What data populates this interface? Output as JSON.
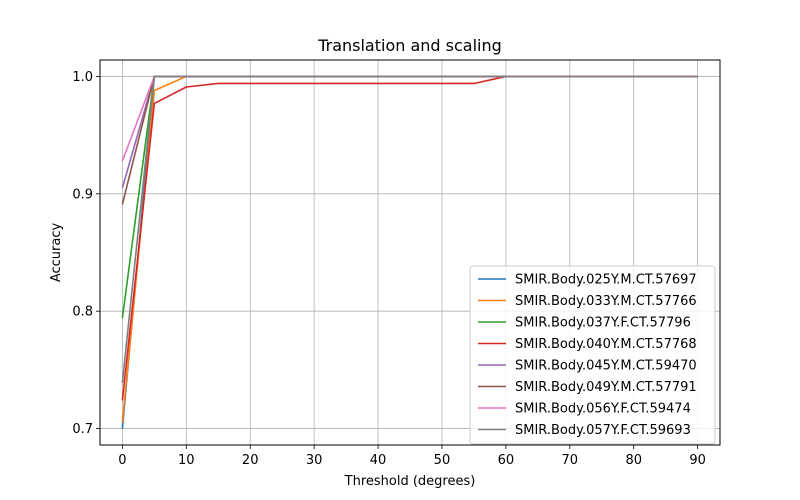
{
  "chart_data": {
    "type": "line",
    "title": "Translation and scaling",
    "xlabel": "Threshold (degrees)",
    "ylabel": "Accuracy",
    "xlim": [
      -3.5,
      93.5
    ],
    "ylim": [
      0.686,
      1.014
    ],
    "xticks": [
      0,
      10,
      20,
      30,
      40,
      50,
      60,
      70,
      80,
      90
    ],
    "yticks": [
      0.7,
      0.8,
      0.9,
      1.0
    ],
    "ytick_labels": [
      "0.7",
      "0.8",
      "0.9",
      "1.0"
    ],
    "grid": true,
    "legend_position": "lower-right",
    "x": [
      0,
      5,
      10,
      15,
      20,
      25,
      30,
      35,
      40,
      45,
      50,
      55,
      60,
      65,
      70,
      75,
      80,
      85,
      90
    ],
    "series": [
      {
        "name": "SMIR.Body.025Y.M.CT.57697",
        "color": "#1f77b4",
        "values": [
          0.7,
          1.0,
          1.0,
          1.0,
          1.0,
          1.0,
          1.0,
          1.0,
          1.0,
          1.0,
          1.0,
          1.0,
          1.0,
          1.0,
          1.0,
          1.0,
          1.0,
          1.0,
          1.0
        ]
      },
      {
        "name": "SMIR.Body.033Y.M.CT.57766",
        "color": "#ff7f0e",
        "values": [
          0.705,
          0.988,
          1.0,
          1.0,
          1.0,
          1.0,
          1.0,
          1.0,
          1.0,
          1.0,
          1.0,
          1.0,
          1.0,
          1.0,
          1.0,
          1.0,
          1.0,
          1.0,
          1.0
        ]
      },
      {
        "name": "SMIR.Body.037Y.F.CT.57796",
        "color": "#2ca02c",
        "values": [
          0.794,
          1.0,
          1.0,
          1.0,
          1.0,
          1.0,
          1.0,
          1.0,
          1.0,
          1.0,
          1.0,
          1.0,
          1.0,
          1.0,
          1.0,
          1.0,
          1.0,
          1.0,
          1.0
        ]
      },
      {
        "name": "SMIR.Body.040Y.M.CT.57768",
        "color": "#d62728",
        "values": [
          0.724,
          0.977,
          0.991,
          0.994,
          0.994,
          0.994,
          0.994,
          0.994,
          0.994,
          0.994,
          0.994,
          0.994,
          1.0,
          1.0,
          1.0,
          1.0,
          1.0,
          1.0,
          1.0
        ]
      },
      {
        "name": "SMIR.Body.045Y.M.CT.59470",
        "color": "#9467bd",
        "values": [
          0.905,
          1.0,
          1.0,
          1.0,
          1.0,
          1.0,
          1.0,
          1.0,
          1.0,
          1.0,
          1.0,
          1.0,
          1.0,
          1.0,
          1.0,
          1.0,
          1.0,
          1.0,
          1.0
        ]
      },
      {
        "name": "SMIR.Body.049Y.M.CT.57791",
        "color": "#8c564b",
        "values": [
          0.891,
          1.0,
          1.0,
          1.0,
          1.0,
          1.0,
          1.0,
          1.0,
          1.0,
          1.0,
          1.0,
          1.0,
          1.0,
          1.0,
          1.0,
          1.0,
          1.0,
          1.0,
          1.0
        ]
      },
      {
        "name": "SMIR.Body.056Y.F.CT.59474",
        "color": "#e377c2",
        "values": [
          0.928,
          1.0,
          1.0,
          1.0,
          1.0,
          1.0,
          1.0,
          1.0,
          1.0,
          1.0,
          1.0,
          1.0,
          1.0,
          1.0,
          1.0,
          1.0,
          1.0,
          1.0,
          1.0
        ]
      },
      {
        "name": "SMIR.Body.057Y.F.CT.59693",
        "color": "#7f7f7f",
        "values": [
          0.739,
          1.0,
          1.0,
          1.0,
          1.0,
          1.0,
          1.0,
          1.0,
          1.0,
          1.0,
          1.0,
          1.0,
          1.0,
          1.0,
          1.0,
          1.0,
          1.0,
          1.0,
          1.0
        ]
      }
    ]
  }
}
